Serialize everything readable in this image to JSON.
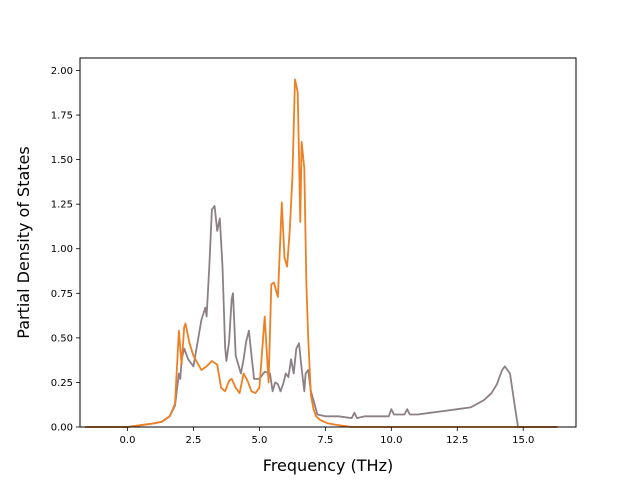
{
  "chart_data": {
    "type": "line",
    "title": "",
    "xlabel": "Frequency (THz)",
    "ylabel": "Partial Density of States",
    "xlim": [
      -1.8,
      17.0
    ],
    "ylim": [
      0.0,
      2.07
    ],
    "xticks": [
      0.0,
      2.5,
      5.0,
      7.5,
      10.0,
      12.5,
      15.0
    ],
    "xtick_labels": [
      "0.0",
      "2.5",
      "5.0",
      "7.5",
      "10.0",
      "12.5",
      "15.0"
    ],
    "yticks": [
      0.0,
      0.25,
      0.5,
      0.75,
      1.0,
      1.25,
      1.5,
      1.75,
      2.0
    ],
    "ytick_labels": [
      "0.00",
      "0.25",
      "0.50",
      "0.75",
      "1.00",
      "1.25",
      "1.50",
      "1.75",
      "2.00"
    ],
    "grid": false,
    "legend": "none",
    "series": [
      {
        "color": "#8c7f86",
        "x": [
          -1.6,
          -0.5,
          0.0,
          0.5,
          1.0,
          1.3,
          1.6,
          1.8,
          1.95,
          2.0,
          2.05,
          2.15,
          2.3,
          2.5,
          2.8,
          2.95,
          3.0,
          3.1,
          3.2,
          3.3,
          3.4,
          3.5,
          3.6,
          3.7,
          3.75,
          3.85,
          3.95,
          4.0,
          4.1,
          4.2,
          4.3,
          4.4,
          4.5,
          4.6,
          4.7,
          4.8,
          5.0,
          5.2,
          5.4,
          5.5,
          5.6,
          5.7,
          5.8,
          5.9,
          6.0,
          6.1,
          6.2,
          6.3,
          6.4,
          6.5,
          6.6,
          6.7,
          6.75,
          6.85,
          6.95,
          7.05,
          7.2,
          7.5,
          8.0,
          8.5,
          8.6,
          8.7,
          9.0,
          9.5,
          9.9,
          10.0,
          10.1,
          10.5,
          10.6,
          10.7,
          11.0,
          11.5,
          12.0,
          12.5,
          13.0,
          13.5,
          13.8,
          14.0,
          14.2,
          14.3,
          14.5,
          14.7,
          14.8,
          15.5,
          16.3
        ],
        "y": [
          0.0,
          0.0,
          0.0,
          0.01,
          0.02,
          0.03,
          0.06,
          0.12,
          0.3,
          0.27,
          0.38,
          0.44,
          0.38,
          0.34,
          0.6,
          0.67,
          0.62,
          0.9,
          1.22,
          1.24,
          1.1,
          1.17,
          0.9,
          0.45,
          0.37,
          0.48,
          0.72,
          0.75,
          0.4,
          0.35,
          0.3,
          0.38,
          0.48,
          0.54,
          0.4,
          0.27,
          0.27,
          0.31,
          0.3,
          0.2,
          0.25,
          0.24,
          0.2,
          0.24,
          0.3,
          0.28,
          0.38,
          0.3,
          0.44,
          0.47,
          0.33,
          0.2,
          0.3,
          0.32,
          0.2,
          0.15,
          0.07,
          0.06,
          0.06,
          0.05,
          0.08,
          0.05,
          0.06,
          0.06,
          0.06,
          0.1,
          0.07,
          0.07,
          0.1,
          0.07,
          0.07,
          0.08,
          0.09,
          0.1,
          0.11,
          0.15,
          0.19,
          0.24,
          0.32,
          0.34,
          0.3,
          0.1,
          0.0,
          0.0,
          0.0
        ]
      },
      {
        "color": "#ee7f22",
        "x": [
          -1.6,
          -0.5,
          0.0,
          0.5,
          1.0,
          1.3,
          1.6,
          1.8,
          1.95,
          2.05,
          2.15,
          2.2,
          2.35,
          2.5,
          2.65,
          2.8,
          3.0,
          3.2,
          3.4,
          3.55,
          3.7,
          3.85,
          3.95,
          4.1,
          4.25,
          4.4,
          4.55,
          4.7,
          4.85,
          5.0,
          5.2,
          5.35,
          5.45,
          5.55,
          5.7,
          5.85,
          5.95,
          6.05,
          6.15,
          6.25,
          6.35,
          6.45,
          6.55,
          6.6,
          6.7,
          6.78,
          6.85,
          6.95,
          7.05,
          7.15,
          7.3,
          7.6,
          8.0,
          8.5,
          9.0,
          10.0,
          11.0,
          12.0,
          13.0,
          14.0,
          14.5,
          14.8,
          16.3
        ],
        "y": [
          0.0,
          0.0,
          0.0,
          0.01,
          0.02,
          0.03,
          0.06,
          0.13,
          0.54,
          0.35,
          0.56,
          0.58,
          0.47,
          0.4,
          0.36,
          0.32,
          0.34,
          0.37,
          0.35,
          0.22,
          0.2,
          0.26,
          0.27,
          0.22,
          0.19,
          0.3,
          0.26,
          0.2,
          0.19,
          0.22,
          0.62,
          0.25,
          0.8,
          0.81,
          0.73,
          1.26,
          0.95,
          0.9,
          1.1,
          1.4,
          1.95,
          1.88,
          1.15,
          1.6,
          1.45,
          0.8,
          0.5,
          0.18,
          0.1,
          0.06,
          0.04,
          0.02,
          0.01,
          0.0,
          0.0,
          0.0,
          0.0,
          0.0,
          0.0,
          0.0,
          0.0,
          0.0,
          0.0
        ]
      }
    ]
  }
}
